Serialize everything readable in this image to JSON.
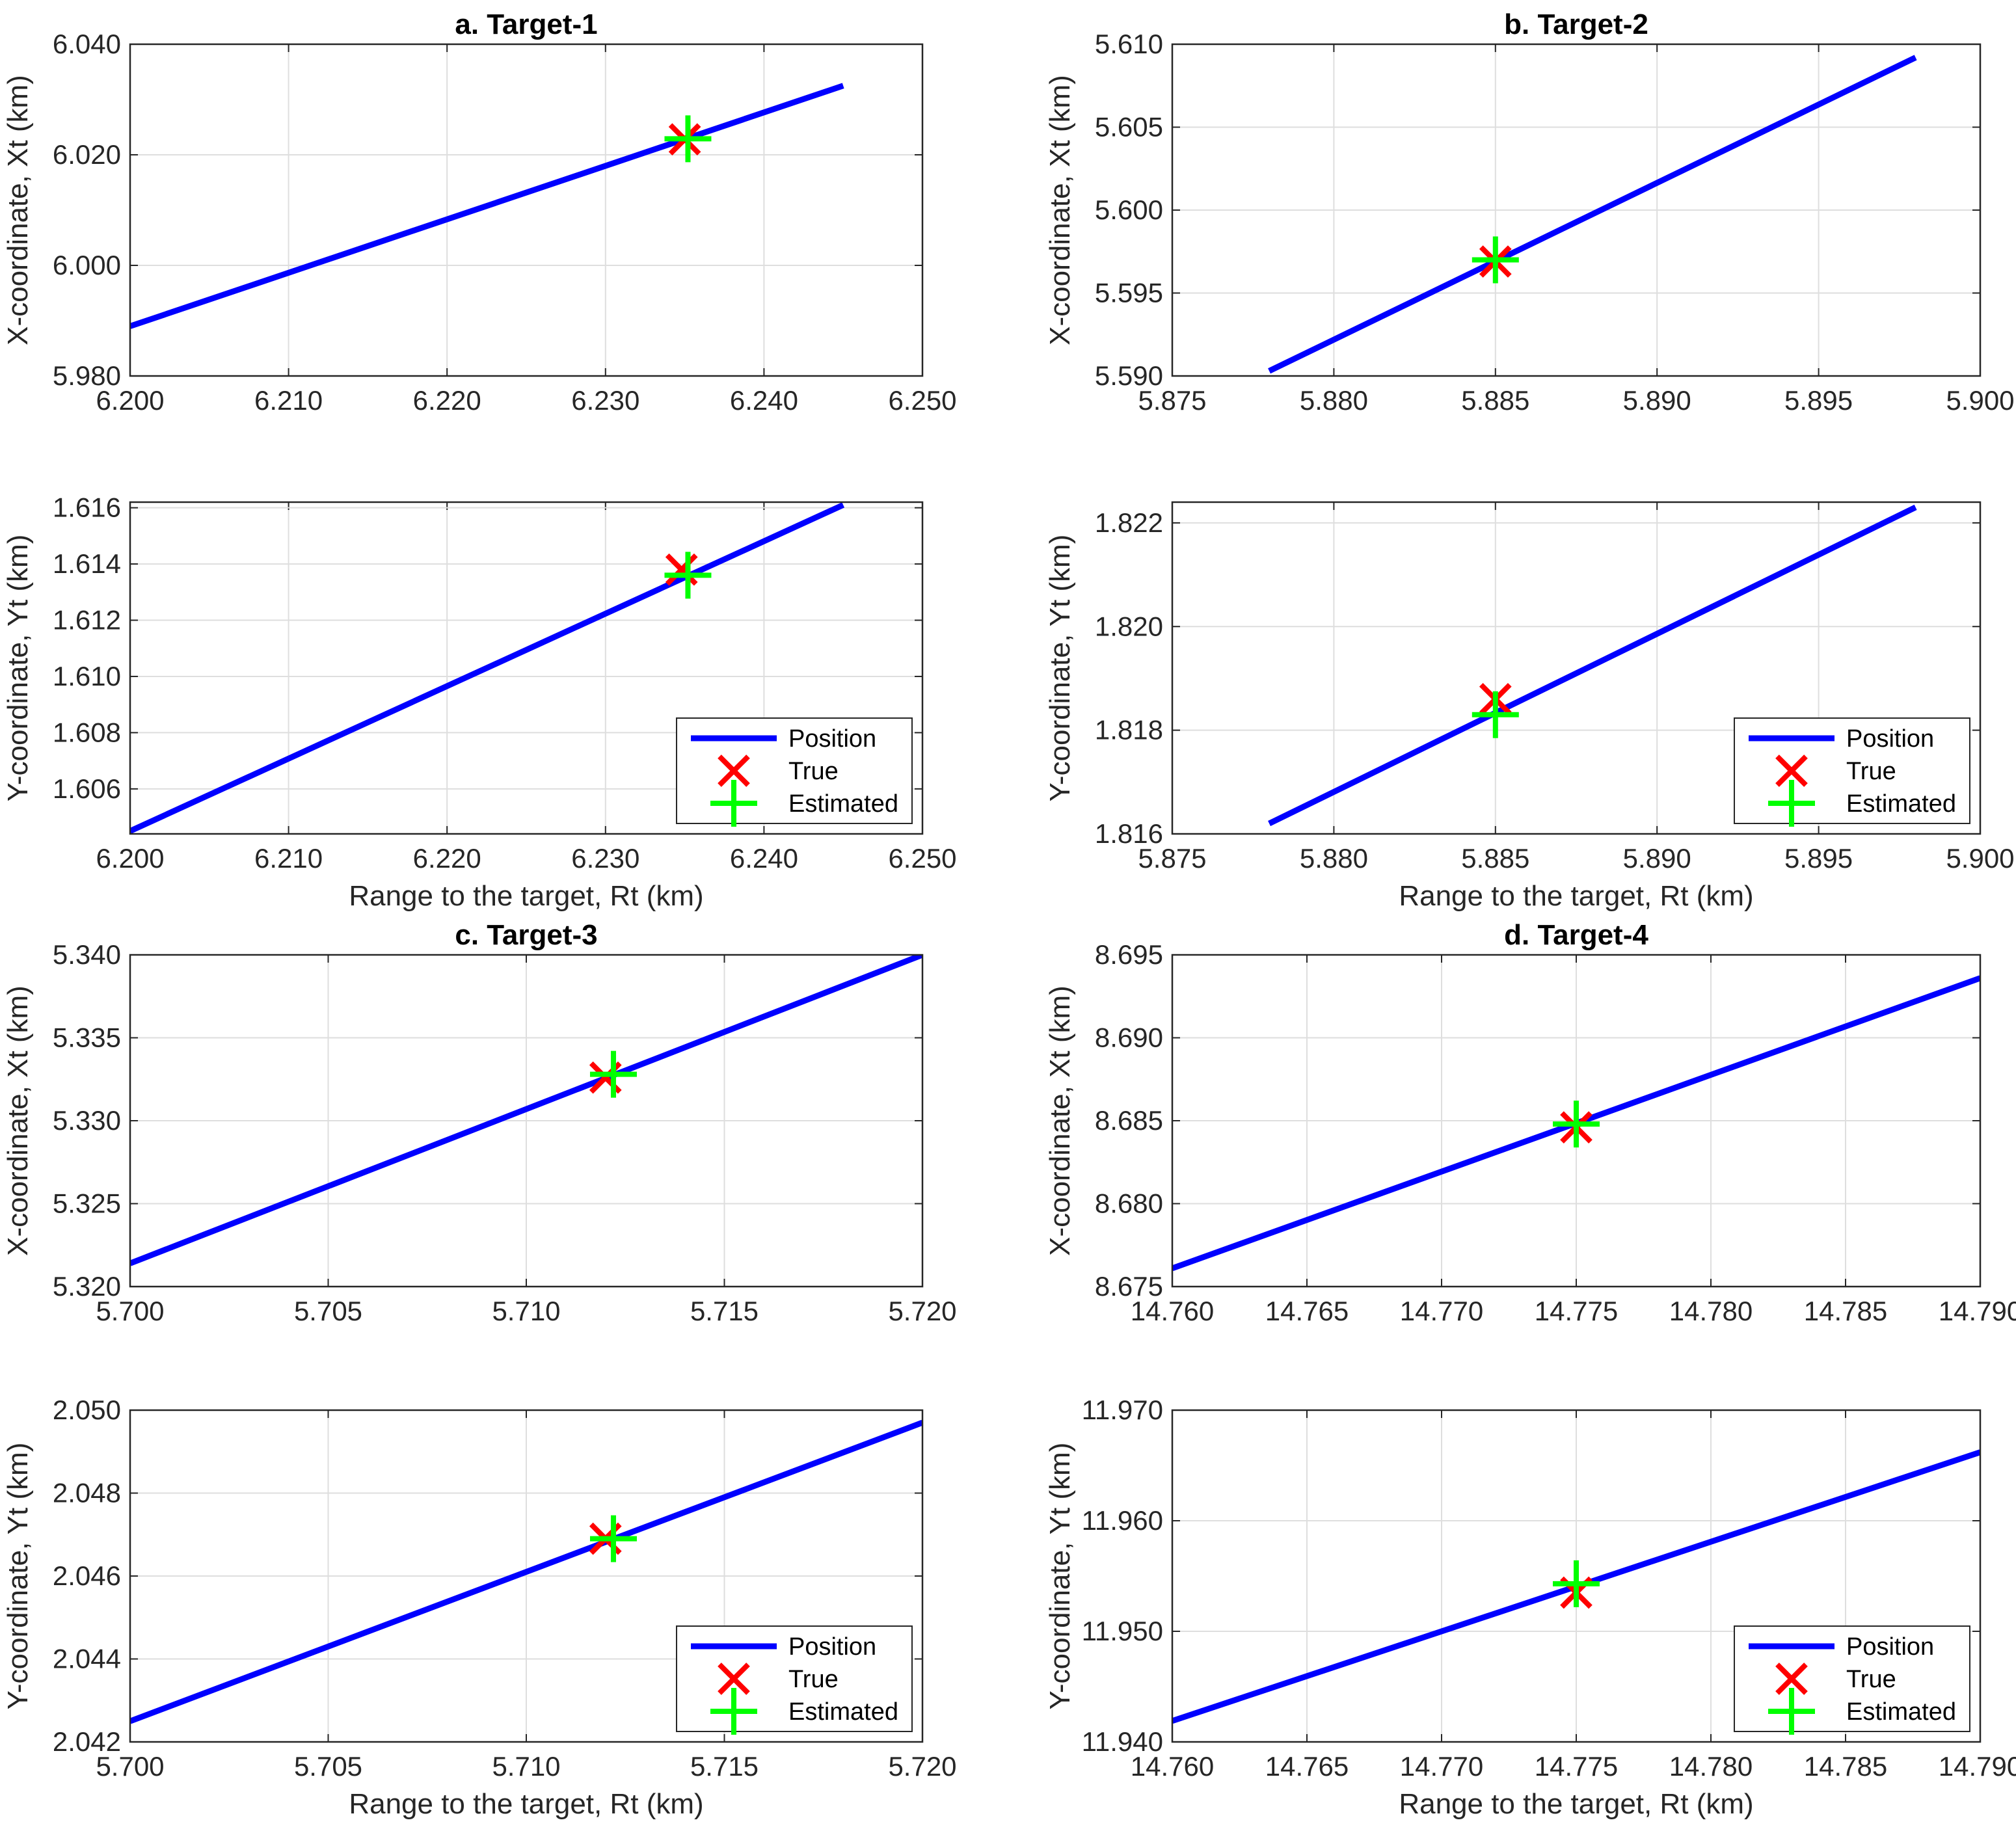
{
  "legend_labels": {
    "position": "Position",
    "true": "True",
    "estimated": "Estimated"
  },
  "colors": {
    "position": "#0000ff",
    "true": "#ff0000",
    "estimated": "#00ff00",
    "grid": "#dedede",
    "axis": "#262626"
  },
  "chart_data": [
    {
      "id": "a_x",
      "type": "line",
      "title": "a. Target-1",
      "xlabel": "",
      "ylabel": "X-coordinate, Xt (km)",
      "xlim": [
        6.2,
        6.25
      ],
      "ylim": [
        5.98,
        6.04
      ],
      "xticks": [
        "6.200",
        "6.210",
        "6.220",
        "6.230",
        "6.240",
        "6.250"
      ],
      "yticks": [
        "5.980",
        "6.000",
        "6.020",
        "6.040"
      ],
      "grid": true,
      "legend": false,
      "series": [
        {
          "name": "Position",
          "x": [
            6.2,
            6.245
          ],
          "y": [
            5.989,
            6.0325
          ]
        }
      ],
      "true_point": [
        6.235,
        6.0228
      ],
      "estimated_point": [
        6.2352,
        6.0229
      ]
    },
    {
      "id": "b_x",
      "type": "line",
      "title": "b. Target-2",
      "xlabel": "",
      "ylabel": "X-coordinate, Xt (km)",
      "xlim": [
        5.875,
        5.9
      ],
      "ylim": [
        5.59,
        5.61
      ],
      "xticks": [
        "5.875",
        "5.880",
        "5.885",
        "5.890",
        "5.895",
        "5.900"
      ],
      "yticks": [
        "5.590",
        "5.595",
        "5.600",
        "5.605",
        "5.610"
      ],
      "grid": true,
      "legend": false,
      "series": [
        {
          "name": "Position",
          "x": [
            5.878,
            5.898
          ],
          "y": [
            5.5903,
            5.6092
          ]
        }
      ],
      "true_point": [
        5.885,
        5.5969
      ],
      "estimated_point": [
        5.885,
        5.597
      ]
    },
    {
      "id": "a_y",
      "type": "line",
      "title": "",
      "xlabel": "Range to the target, Rt (km)",
      "ylabel": "Y-coordinate, Yt (km)",
      "xlim": [
        6.2,
        6.25
      ],
      "ylim": [
        1.6044,
        1.6162
      ],
      "xticks": [
        "6.200",
        "6.210",
        "6.220",
        "6.230",
        "6.240",
        "6.250"
      ],
      "yticks": [
        "1.606",
        "1.608",
        "1.610",
        "1.612",
        "1.614",
        "1.616"
      ],
      "grid": true,
      "legend": true,
      "series": [
        {
          "name": "Position",
          "x": [
            6.2,
            6.245
          ],
          "y": [
            1.6045,
            1.6161
          ]
        }
      ],
      "true_point": [
        6.2348,
        1.6138
      ],
      "estimated_point": [
        6.2352,
        1.6136
      ]
    },
    {
      "id": "b_y",
      "type": "line",
      "title": "",
      "xlabel": "Range to the target, Rt (km)",
      "ylabel": "Y-coordinate, Yt (km)",
      "xlim": [
        5.875,
        5.9
      ],
      "ylim": [
        1.816,
        1.8224
      ],
      "xticks": [
        "5.875",
        "5.880",
        "5.885",
        "5.890",
        "5.895",
        "5.900"
      ],
      "yticks": [
        "1.816",
        "1.818",
        "1.820",
        "1.822"
      ],
      "grid": true,
      "legend": true,
      "series": [
        {
          "name": "Position",
          "x": [
            5.878,
            5.898
          ],
          "y": [
            1.8162,
            1.8223
          ]
        }
      ],
      "true_point": [
        5.885,
        1.8186
      ],
      "estimated_point": [
        5.885,
        1.8183
      ]
    },
    {
      "id": "c_x",
      "type": "line",
      "title": "c. Target-3",
      "xlabel": "",
      "ylabel": "X-coordinate, Xt (km)",
      "xlim": [
        5.7,
        5.72
      ],
      "ylim": [
        5.32,
        5.34
      ],
      "xticks": [
        "5.700",
        "5.705",
        "5.710",
        "5.715",
        "5.720"
      ],
      "yticks": [
        "5.320",
        "5.325",
        "5.330",
        "5.335",
        "5.340"
      ],
      "grid": true,
      "legend": false,
      "series": [
        {
          "name": "Position",
          "x": [
            5.7,
            5.72
          ],
          "y": [
            5.3214,
            5.34
          ]
        }
      ],
      "true_point": [
        5.712,
        5.3326
      ],
      "estimated_point": [
        5.7122,
        5.3328
      ]
    },
    {
      "id": "d_x",
      "type": "line",
      "title": "d. Target-4",
      "xlabel": "",
      "ylabel": "X-coordinate, Xt (km)",
      "xlim": [
        14.76,
        14.79
      ],
      "ylim": [
        8.675,
        8.695
      ],
      "xticks": [
        "14.760",
        "14.765",
        "14.770",
        "14.775",
        "14.780",
        "14.785",
        "14.790"
      ],
      "yticks": [
        "8.675",
        "8.680",
        "8.685",
        "8.690",
        "8.695"
      ],
      "grid": true,
      "legend": false,
      "series": [
        {
          "name": "Position",
          "x": [
            14.76,
            14.79
          ],
          "y": [
            8.6761,
            8.6936
          ]
        }
      ],
      "true_point": [
        14.775,
        8.6846
      ],
      "estimated_point": [
        14.775,
        8.6848
      ]
    },
    {
      "id": "c_y",
      "type": "line",
      "title": "",
      "xlabel": "Range to the target, Rt (km)",
      "ylabel": "Y-coordinate, Yt (km)",
      "xlim": [
        5.7,
        5.72
      ],
      "ylim": [
        2.042,
        2.05
      ],
      "xticks": [
        "5.700",
        "5.705",
        "5.710",
        "5.715",
        "5.720"
      ],
      "yticks": [
        "2.042",
        "2.044",
        "2.046",
        "2.048",
        "2.050"
      ],
      "grid": true,
      "legend": true,
      "series": [
        {
          "name": "Position",
          "x": [
            5.7,
            5.72
          ],
          "y": [
            2.0425,
            2.0497
          ]
        }
      ],
      "true_point": [
        5.712,
        2.0469
      ],
      "estimated_point": [
        5.7122,
        2.0469
      ]
    },
    {
      "id": "d_y",
      "type": "line",
      "title": "",
      "xlabel": "Range to the target, Rt (km)",
      "ylabel": "Y-coordinate, Yt (km)",
      "xlim": [
        14.76,
        14.79
      ],
      "ylim": [
        11.94,
        11.97
      ],
      "xticks": [
        "14.760",
        "14.765",
        "14.770",
        "14.775",
        "14.780",
        "14.785",
        "14.790"
      ],
      "yticks": [
        "11.940",
        "11.950",
        "11.960",
        "11.970"
      ],
      "grid": true,
      "legend": true,
      "series": [
        {
          "name": "Position",
          "x": [
            14.76,
            14.79
          ],
          "y": [
            11.9419,
            11.9662
          ]
        }
      ],
      "true_point": [
        14.775,
        11.9535
      ],
      "estimated_point": [
        14.775,
        11.9543
      ]
    }
  ]
}
